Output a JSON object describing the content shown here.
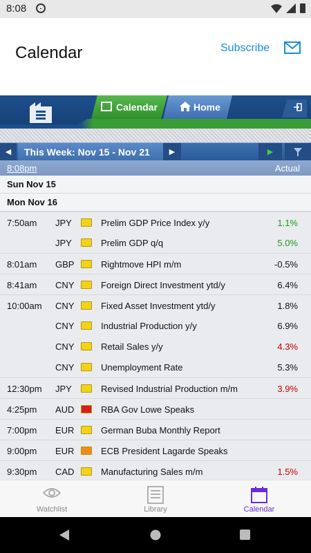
{
  "status": {
    "time": "8:08"
  },
  "appbar": {
    "title": "Calendar",
    "subscribe": "Subscribe"
  },
  "tabs": {
    "calendar": "Calendar",
    "home": "Home"
  },
  "week": {
    "label": "This Week: Nov 15 - Nov 21"
  },
  "columns": {
    "time": "8:08pm",
    "actual": "Actual"
  },
  "days": [
    {
      "label": "Sun Nov 15"
    },
    {
      "label": "Mon Nov 16"
    }
  ],
  "events": [
    {
      "time": "7:50am",
      "currency": "JPY",
      "importance": "medium",
      "event": "Prelim GDP Price Index y/y",
      "actual": "1.1%",
      "actual_color": "#1a9a1a"
    },
    {
      "time": "",
      "currency": "JPY",
      "importance": "medium",
      "event": "Prelim GDP q/q",
      "actual": "5.0%",
      "actual_color": "#1a9a1a"
    },
    {
      "time": "8:01am",
      "currency": "GBP",
      "importance": "medium",
      "event": "Rightmove HPI m/m",
      "actual": "-0.5%",
      "actual_color": "#111111"
    },
    {
      "time": "8:41am",
      "currency": "CNY",
      "importance": "medium",
      "event": "Foreign Direct Investment ytd/y",
      "actual": "6.4%",
      "actual_color": "#111111"
    },
    {
      "time": "10:00am",
      "currency": "CNY",
      "importance": "medium",
      "event": "Fixed Asset Investment ytd/y",
      "actual": "1.8%",
      "actual_color": "#111111"
    },
    {
      "time": "",
      "currency": "CNY",
      "importance": "medium",
      "event": "Industrial Production y/y",
      "actual": "6.9%",
      "actual_color": "#111111"
    },
    {
      "time": "",
      "currency": "CNY",
      "importance": "medium",
      "event": "Retail Sales y/y",
      "actual": "4.3%",
      "actual_color": "#c80000"
    },
    {
      "time": "",
      "currency": "CNY",
      "importance": "medium",
      "event": "Unemployment Rate",
      "actual": "5.3%",
      "actual_color": "#111111"
    },
    {
      "time": "12:30pm",
      "currency": "JPY",
      "importance": "medium",
      "event": "Revised Industrial Production m/m",
      "actual": "3.9%",
      "actual_color": "#c80000"
    },
    {
      "time": "4:25pm",
      "currency": "AUD",
      "importance": "high",
      "event": "RBA Gov Lowe Speaks",
      "actual": "",
      "actual_color": "#111111"
    },
    {
      "time": "7:00pm",
      "currency": "EUR",
      "importance": "medium",
      "event": "German Buba Monthly Report",
      "actual": "",
      "actual_color": "#111111"
    },
    {
      "time": "9:00pm",
      "currency": "EUR",
      "importance": "orange",
      "event": "ECB President Lagarde Speaks",
      "actual": "",
      "actual_color": "#111111"
    },
    {
      "time": "9:30pm",
      "currency": "CAD",
      "importance": "medium",
      "event": "Manufacturing Sales m/m",
      "actual": "1.5%",
      "actual_color": "#c80000"
    }
  ],
  "importance_colors": {
    "medium": "#f2d21b",
    "high": "#d81c1c",
    "orange": "#f08a1c"
  },
  "nav": {
    "watchlist": "Watchlist",
    "library": "Library",
    "calendar": "Calendar"
  }
}
